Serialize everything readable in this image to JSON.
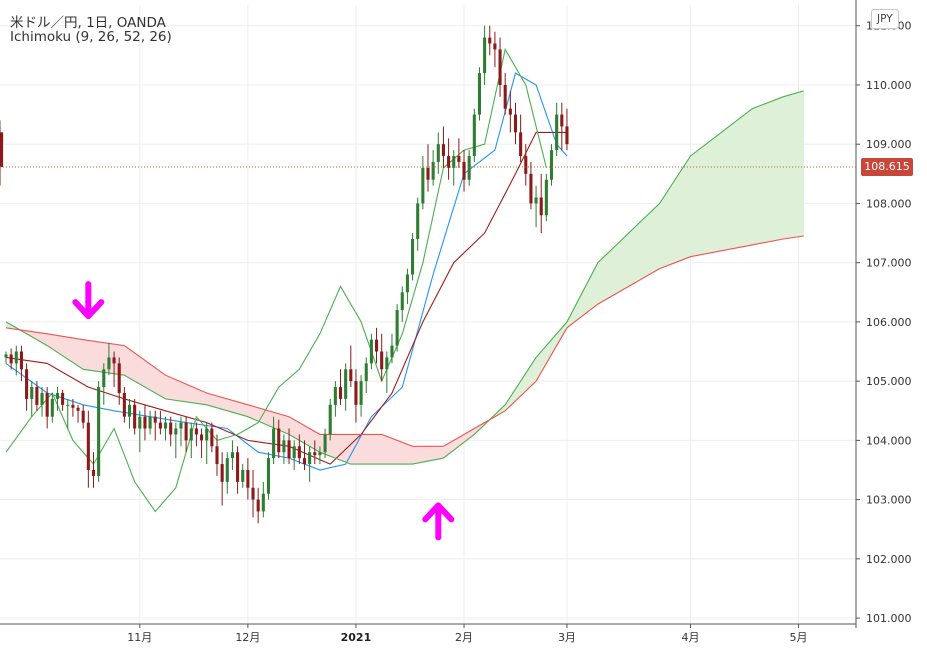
{
  "header": {
    "title": "米ドル／円, 1日, OANDA",
    "indicator": "Ichimoku (9, 26, 52, 26)",
    "currency": "JPY",
    "last_price": "108.615"
  },
  "colors": {
    "up_candle": "#2e7d32",
    "down_candle": "#8b1a1a",
    "tenkan": "#2196f3",
    "kijun": "#a01c1c",
    "chikou": "#4caf50",
    "span_a": "#4caf50",
    "span_b": "#ef5350",
    "cloud_bull": "#dff0d8",
    "cloud_bear": "#fbdcdc",
    "arrow": "#ff00ff",
    "last_price_line": "#b5651d"
  },
  "chart_data": {
    "type": "candlestick",
    "symbol": "USDJPY",
    "ylim": [
      100.9,
      111.35
    ],
    "y_ticks": [
      "101.000",
      "102.000",
      "103.000",
      "104.000",
      "105.000",
      "106.000",
      "107.000",
      "108.000",
      "109.000",
      "110.000",
      "111.000"
    ],
    "x_ticks": [
      {
        "label": "11月",
        "bar": 23,
        "bold": false
      },
      {
        "label": "12月",
        "bar": 44,
        "bold": false
      },
      {
        "label": "2021",
        "bar": 65,
        "bold": true
      },
      {
        "label": "2月",
        "bar": 86,
        "bold": false
      },
      {
        "label": "3月",
        "bar": 106,
        "bold": false
      },
      {
        "label": "4月",
        "bar": 130,
        "bold": false
      },
      {
        "label": "5月",
        "bar": 151,
        "bold": false
      }
    ],
    "bar_domain": [
      -3,
      161
    ],
    "last_price": 108.615,
    "candles": [
      [
        105.4,
        105.5,
        105.3,
        105.45
      ],
      [
        105.45,
        105.55,
        105.2,
        105.3
      ],
      [
        105.3,
        105.6,
        105.1,
        105.5
      ],
      [
        105.5,
        105.6,
        105.0,
        105.2
      ],
      [
        105.2,
        105.3,
        104.5,
        104.7
      ],
      [
        104.7,
        105.0,
        104.4,
        104.9
      ],
      [
        104.9,
        105.0,
        104.5,
        104.6
      ],
      [
        104.6,
        104.9,
        104.4,
        104.8
      ],
      [
        104.8,
        104.9,
        104.2,
        104.4
      ],
      [
        104.4,
        104.8,
        104.3,
        104.7
      ],
      [
        104.7,
        104.9,
        104.5,
        104.8
      ],
      [
        104.8,
        104.85,
        104.5,
        104.6
      ],
      [
        104.6,
        104.7,
        104.2,
        104.6
      ],
      [
        104.6,
        104.7,
        104.4,
        104.55
      ],
      [
        104.55,
        104.6,
        104.3,
        104.5
      ],
      [
        104.5,
        104.6,
        104.2,
        104.3
      ],
      [
        104.3,
        104.5,
        103.2,
        103.5
      ],
      [
        103.5,
        103.8,
        103.2,
        103.4
      ],
      [
        103.4,
        105.0,
        103.3,
        104.9
      ],
      [
        104.9,
        105.3,
        104.6,
        105.2
      ],
      [
        105.2,
        105.65,
        105.1,
        105.4
      ],
      [
        105.4,
        105.5,
        104.9,
        105.3
      ],
      [
        105.3,
        105.4,
        104.6,
        104.8
      ],
      [
        104.8,
        104.9,
        104.3,
        104.4
      ],
      [
        104.4,
        104.7,
        104.2,
        104.6
      ],
      [
        104.6,
        104.7,
        104.1,
        104.2
      ],
      [
        104.2,
        104.5,
        103.8,
        104.4
      ],
      [
        104.4,
        104.6,
        104.0,
        104.2
      ],
      [
        104.2,
        104.5,
        104.1,
        104.4
      ],
      [
        104.4,
        104.5,
        104.0,
        104.3
      ],
      [
        104.3,
        104.5,
        104.1,
        104.2
      ],
      [
        104.2,
        104.4,
        104.0,
        104.3
      ],
      [
        104.3,
        104.4,
        103.9,
        104.1
      ],
      [
        104.1,
        104.3,
        103.7,
        104.2
      ],
      [
        104.2,
        104.4,
        103.9,
        104.3
      ],
      [
        104.3,
        104.4,
        103.8,
        104.0
      ],
      [
        104.0,
        104.3,
        103.7,
        104.2
      ],
      [
        104.2,
        104.3,
        103.9,
        104.1
      ],
      [
        104.1,
        104.2,
        103.7,
        104.0
      ],
      [
        104.0,
        104.3,
        103.6,
        104.2
      ],
      [
        104.2,
        104.3,
        103.8,
        103.9
      ],
      [
        103.9,
        104.1,
        103.4,
        103.6
      ],
      [
        103.6,
        103.8,
        102.9,
        103.3
      ],
      [
        103.3,
        103.8,
        103.1,
        103.7
      ],
      [
        103.7,
        104.0,
        103.5,
        103.8
      ],
      [
        103.8,
        103.9,
        103.1,
        103.3
      ],
      [
        103.3,
        103.6,
        103.2,
        103.5
      ],
      [
        103.5,
        103.7,
        103.0,
        103.2
      ],
      [
        103.2,
        103.5,
        102.7,
        103.0
      ],
      [
        103.0,
        103.2,
        102.6,
        102.8
      ],
      [
        102.8,
        103.3,
        102.7,
        103.1
      ],
      [
        103.1,
        103.8,
        103.0,
        103.7
      ],
      [
        103.7,
        104.4,
        103.6,
        104.2
      ],
      [
        104.2,
        104.35,
        103.7,
        103.8
      ],
      [
        103.8,
        104.1,
        103.6,
        104.0
      ],
      [
        104.0,
        104.2,
        103.6,
        103.7
      ],
      [
        103.7,
        104.0,
        103.5,
        103.9
      ],
      [
        103.9,
        104.1,
        103.6,
        103.7
      ],
      [
        103.7,
        104.0,
        103.5,
        103.6
      ],
      [
        103.6,
        103.9,
        103.3,
        103.8
      ],
      [
        103.8,
        104.0,
        103.6,
        103.75
      ],
      [
        103.75,
        103.9,
        103.6,
        103.8
      ],
      [
        103.8,
        104.2,
        103.7,
        104.1
      ],
      [
        104.1,
        104.7,
        104.0,
        104.6
      ],
      [
        104.6,
        105.0,
        104.4,
        104.9
      ],
      [
        104.9,
        105.2,
        104.6,
        104.7
      ],
      [
        104.7,
        105.3,
        104.5,
        105.2
      ],
      [
        105.2,
        105.6,
        104.9,
        105.0
      ],
      [
        105.0,
        105.2,
        104.3,
        104.6
      ],
      [
        104.6,
        105.1,
        104.4,
        105.0
      ],
      [
        105.0,
        105.4,
        104.8,
        105.3
      ],
      [
        105.3,
        105.8,
        105.2,
        105.7
      ],
      [
        105.7,
        105.9,
        105.3,
        105.5
      ],
      [
        105.5,
        105.8,
        105.0,
        105.2
      ],
      [
        105.2,
        105.5,
        104.8,
        105.4
      ],
      [
        105.4,
        105.8,
        105.3,
        105.6
      ],
      [
        105.6,
        106.3,
        105.5,
        106.2
      ],
      [
        106.2,
        106.6,
        106.0,
        106.5
      ],
      [
        106.5,
        106.9,
        106.3,
        106.8
      ],
      [
        106.8,
        107.5,
        106.7,
        107.4
      ],
      [
        107.4,
        108.1,
        107.2,
        108.0
      ],
      [
        108.0,
        108.8,
        107.9,
        108.6
      ],
      [
        108.6,
        109.0,
        108.2,
        108.4
      ],
      [
        108.4,
        108.9,
        108.3,
        108.7
      ],
      [
        108.7,
        109.2,
        108.5,
        109.0
      ],
      [
        109.0,
        109.3,
        108.6,
        108.8
      ],
      [
        108.8,
        109.1,
        108.4,
        108.6
      ],
      [
        108.6,
        108.9,
        108.3,
        108.8
      ],
      [
        108.8,
        109.1,
        108.6,
        108.7
      ],
      [
        108.7,
        108.9,
        108.2,
        108.4
      ],
      [
        108.4,
        108.9,
        108.3,
        108.8
      ],
      [
        108.8,
        109.6,
        108.7,
        109.5
      ],
      [
        109.5,
        110.3,
        109.4,
        110.2
      ],
      [
        110.2,
        111.0,
        110.0,
        110.8
      ],
      [
        110.8,
        111.0,
        110.5,
        110.7
      ],
      [
        110.7,
        110.9,
        110.3,
        110.6
      ],
      [
        110.6,
        110.8,
        109.8,
        110.0
      ],
      [
        110.0,
        110.2,
        109.5,
        109.6
      ],
      [
        109.6,
        109.9,
        109.2,
        109.5
      ],
      [
        109.5,
        109.7,
        109.0,
        109.2
      ],
      [
        109.2,
        109.5,
        108.7,
        108.8
      ],
      [
        108.8,
        109.0,
        108.3,
        108.5
      ],
      [
        108.5,
        108.7,
        107.9,
        108.0
      ],
      [
        108.0,
        108.3,
        107.6,
        108.1
      ],
      [
        108.1,
        108.5,
        107.5,
        107.8
      ],
      [
        107.8,
        108.5,
        107.7,
        108.4
      ],
      [
        108.4,
        109.0,
        108.3,
        108.9
      ],
      [
        108.9,
        109.7,
        108.8,
        109.5
      ],
      [
        109.5,
        109.7,
        108.9,
        109.3
      ],
      [
        109.3,
        109.6,
        108.9,
        109.0
      ],
      [
        109.0,
        109.4,
        108.6,
        109.2
      ],
      [
        109.2,
        109.3,
        108.3,
        108.615
      ]
    ],
    "candle_bars": [
      -3,
      -2,
      -1,
      0,
      1,
      2,
      3,
      4,
      5,
      6,
      7,
      8,
      9,
      10,
      11,
      12,
      13,
      14,
      15,
      16,
      17,
      18,
      19,
      20,
      21,
      22,
      23,
      24,
      25,
      26,
      27,
      28,
      29,
      30,
      31,
      32,
      33,
      34,
      35,
      36,
      37,
      38,
      39,
      40,
      41,
      42,
      43,
      44,
      45,
      46,
      47,
      48,
      49,
      50,
      51,
      52,
      53,
      54,
      55,
      56,
      57,
      58,
      59,
      60,
      61,
      62,
      63,
      64,
      65,
      66,
      67,
      68,
      69,
      70,
      71,
      72,
      73,
      74,
      75,
      76,
      77,
      78,
      79,
      80,
      81,
      82,
      83,
      84,
      85,
      86,
      87,
      88,
      89,
      90,
      91,
      92,
      93,
      94,
      95,
      96,
      97,
      98,
      99,
      100,
      101,
      102,
      103,
      104,
      105,
      106
    ],
    "series": [
      {
        "name": "Ichimoku (9, 26, 52, 26)",
        "kind": "tenkan",
        "points": [
          [
            -3,
            105.3
          ],
          [
            5,
            104.8
          ],
          [
            12,
            104.6
          ],
          [
            18,
            104.5
          ],
          [
            25,
            104.4
          ],
          [
            32,
            104.3
          ],
          [
            40,
            104.2
          ],
          [
            46,
            103.8
          ],
          [
            52,
            103.7
          ],
          [
            58,
            103.5
          ],
          [
            63,
            103.6
          ],
          [
            68,
            104.4
          ],
          [
            74,
            104.9
          ],
          [
            80,
            106.8
          ],
          [
            86,
            108.5
          ],
          [
            92,
            108.9
          ],
          [
            96,
            110.2
          ],
          [
            100,
            110.0
          ],
          [
            104,
            109.0
          ],
          [
            106,
            108.8
          ]
        ]
      },
      {
        "name": "",
        "kind": "kijun",
        "points": [
          [
            -3,
            105.4
          ],
          [
            5,
            105.3
          ],
          [
            13,
            104.9
          ],
          [
            20,
            104.7
          ],
          [
            28,
            104.5
          ],
          [
            36,
            104.3
          ],
          [
            44,
            104.0
          ],
          [
            52,
            103.9
          ],
          [
            60,
            103.6
          ],
          [
            66,
            104.1
          ],
          [
            72,
            104.8
          ],
          [
            78,
            106.0
          ],
          [
            84,
            107.0
          ],
          [
            90,
            107.5
          ],
          [
            96,
            108.5
          ],
          [
            100,
            109.2
          ],
          [
            106,
            109.2
          ]
        ]
      },
      {
        "name": "",
        "kind": "chikou",
        "points": [
          [
            -3,
            103.8
          ],
          [
            2,
            104.4
          ],
          [
            6,
            104.8
          ],
          [
            10,
            104.0
          ],
          [
            14,
            103.6
          ],
          [
            18,
            104.2
          ],
          [
            22,
            103.3
          ],
          [
            26,
            102.8
          ],
          [
            30,
            103.2
          ],
          [
            34,
            104.4
          ],
          [
            38,
            104.0
          ],
          [
            42,
            104.1
          ],
          [
            46,
            104.3
          ],
          [
            50,
            104.9
          ],
          [
            54,
            105.2
          ],
          [
            58,
            105.8
          ],
          [
            62,
            106.6
          ],
          [
            66,
            106.0
          ],
          [
            70,
            105.0
          ],
          [
            74,
            105.8
          ],
          [
            78,
            107.0
          ],
          [
            82,
            108.6
          ],
          [
            86,
            108.9
          ],
          [
            90,
            109.0
          ],
          [
            94,
            110.6
          ],
          [
            98,
            110.0
          ],
          [
            102,
            108.6
          ]
        ]
      },
      {
        "name": "",
        "kind": "span_a",
        "points": [
          [
            -3,
            106.0
          ],
          [
            5,
            105.6
          ],
          [
            12,
            105.2
          ],
          [
            20,
            105.1
          ],
          [
            28,
            104.7
          ],
          [
            36,
            104.6
          ],
          [
            44,
            104.4
          ],
          [
            52,
            104.1
          ],
          [
            58,
            103.8
          ],
          [
            64,
            103.6
          ],
          [
            70,
            103.6
          ],
          [
            76,
            103.6
          ],
          [
            82,
            103.7
          ],
          [
            88,
            104.1
          ],
          [
            94,
            104.6
          ],
          [
            100,
            105.4
          ],
          [
            106,
            106.0
          ],
          [
            112,
            107.0
          ],
          [
            118,
            107.5
          ],
          [
            124,
            108.0
          ],
          [
            130,
            108.8
          ],
          [
            136,
            109.2
          ],
          [
            142,
            109.6
          ],
          [
            148,
            109.8
          ],
          [
            152,
            109.9
          ]
        ]
      },
      {
        "name": "",
        "kind": "span_b",
        "points": [
          [
            -3,
            105.9
          ],
          [
            5,
            105.8
          ],
          [
            12,
            105.7
          ],
          [
            20,
            105.6
          ],
          [
            28,
            105.1
          ],
          [
            36,
            104.8
          ],
          [
            44,
            104.6
          ],
          [
            52,
            104.4
          ],
          [
            58,
            104.1
          ],
          [
            64,
            104.1
          ],
          [
            70,
            104.1
          ],
          [
            76,
            103.9
          ],
          [
            82,
            103.9
          ],
          [
            88,
            104.2
          ],
          [
            94,
            104.5
          ],
          [
            100,
            105.0
          ],
          [
            106,
            105.9
          ],
          [
            112,
            106.3
          ],
          [
            118,
            106.6
          ],
          [
            124,
            106.9
          ],
          [
            130,
            107.1
          ],
          [
            136,
            107.2
          ],
          [
            142,
            107.3
          ],
          [
            148,
            107.4
          ],
          [
            152,
            107.45
          ]
        ]
      }
    ],
    "annotations": [
      {
        "type": "arrow-down",
        "bar": 13,
        "price": 106.3
      },
      {
        "type": "arrow-up",
        "bar": 81,
        "price": 102.7
      }
    ]
  }
}
